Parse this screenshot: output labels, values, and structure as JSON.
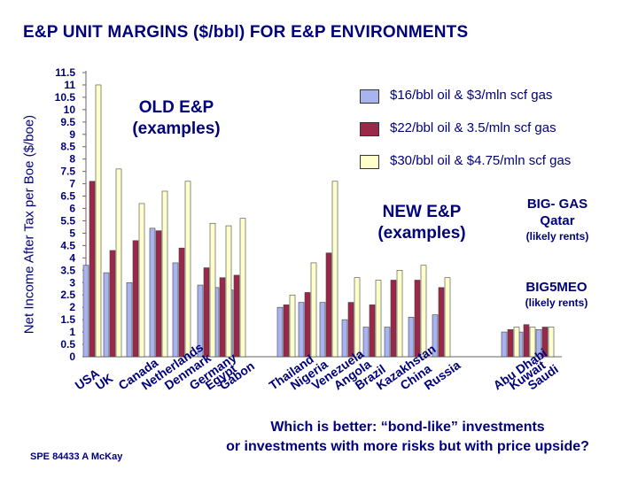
{
  "title": "E&P UNIT MARGINS ($/bbl) FOR E&P ENVIRONMENTS",
  "annotations": {
    "old_line1": "OLD E&P",
    "old_line2": "(examples)",
    "new_line1": "NEW E&P",
    "new_line2": "(examples)",
    "biggas_line1": "BIG- GAS",
    "biggas_line2": "Qatar",
    "biggas_line3": "(likely rents)",
    "big5_line1": "BIG5MEO",
    "big5_line2": "(likely rents)"
  },
  "footnote": "SPE 84433  A McKay",
  "question_line1": "Which is better:  “bond-like” investments",
  "question_line2": "or investments with more risks but with price upside?",
  "colors": {
    "series1": "#a9b3f0",
    "series2": "#9b2749",
    "series3": "#ffffcc",
    "text": "#00007a"
  },
  "chart_data": {
    "type": "bar",
    "ylabel": "Net Income After Tax per Boe ($/boe)",
    "ylim": [
      0,
      11.5
    ],
    "yticks": [
      "11.5",
      "11",
      "10.5",
      "10",
      "9.5",
      "9",
      "8.5",
      "8",
      "7.5",
      "7",
      "6.5",
      "6",
      "5.5",
      "5",
      "4.5",
      "4",
      "3.5",
      "3",
      "2.5",
      "2",
      "1.5",
      "1",
      "0.5",
      "0"
    ],
    "legend_position": "top-right",
    "categories": [
      "USA",
      "UK",
      "Canada",
      "Netherlands",
      "Denmark",
      "Germany",
      "Egypt",
      "Gabon",
      "Thailand",
      "Nigeria",
      "Venezuela",
      "Angola",
      "Brazil",
      "Kazakhstan",
      "China",
      "Russia",
      "Abu Dhabi",
      "Kuwait",
      "Saudi"
    ],
    "series": [
      {
        "name": "$16/bbl oil & $3/mln scf gas",
        "values": [
          3.7,
          3.4,
          3.0,
          5.2,
          3.8,
          2.9,
          2.8,
          2.7,
          2.0,
          2.2,
          2.2,
          1.5,
          1.2,
          1.2,
          1.6,
          1.7,
          1.0,
          1.0,
          1.1
        ]
      },
      {
        "name": "$22/bbl oil & 3.5/mln scf gas",
        "values": [
          7.1,
          4.3,
          4.7,
          5.1,
          4.4,
          3.6,
          3.2,
          3.3,
          2.1,
          2.6,
          4.2,
          2.2,
          2.1,
          3.1,
          3.1,
          2.8,
          1.1,
          1.3,
          1.2
        ]
      },
      {
        "name": "$30/bbl oil & $4.75/mln scf gas",
        "values": [
          11.0,
          7.6,
          6.2,
          6.7,
          7.1,
          5.4,
          5.3,
          5.6,
          2.5,
          3.8,
          7.1,
          3.2,
          3.1,
          3.5,
          3.7,
          3.2,
          1.2,
          1.2,
          1.2
        ]
      }
    ]
  }
}
